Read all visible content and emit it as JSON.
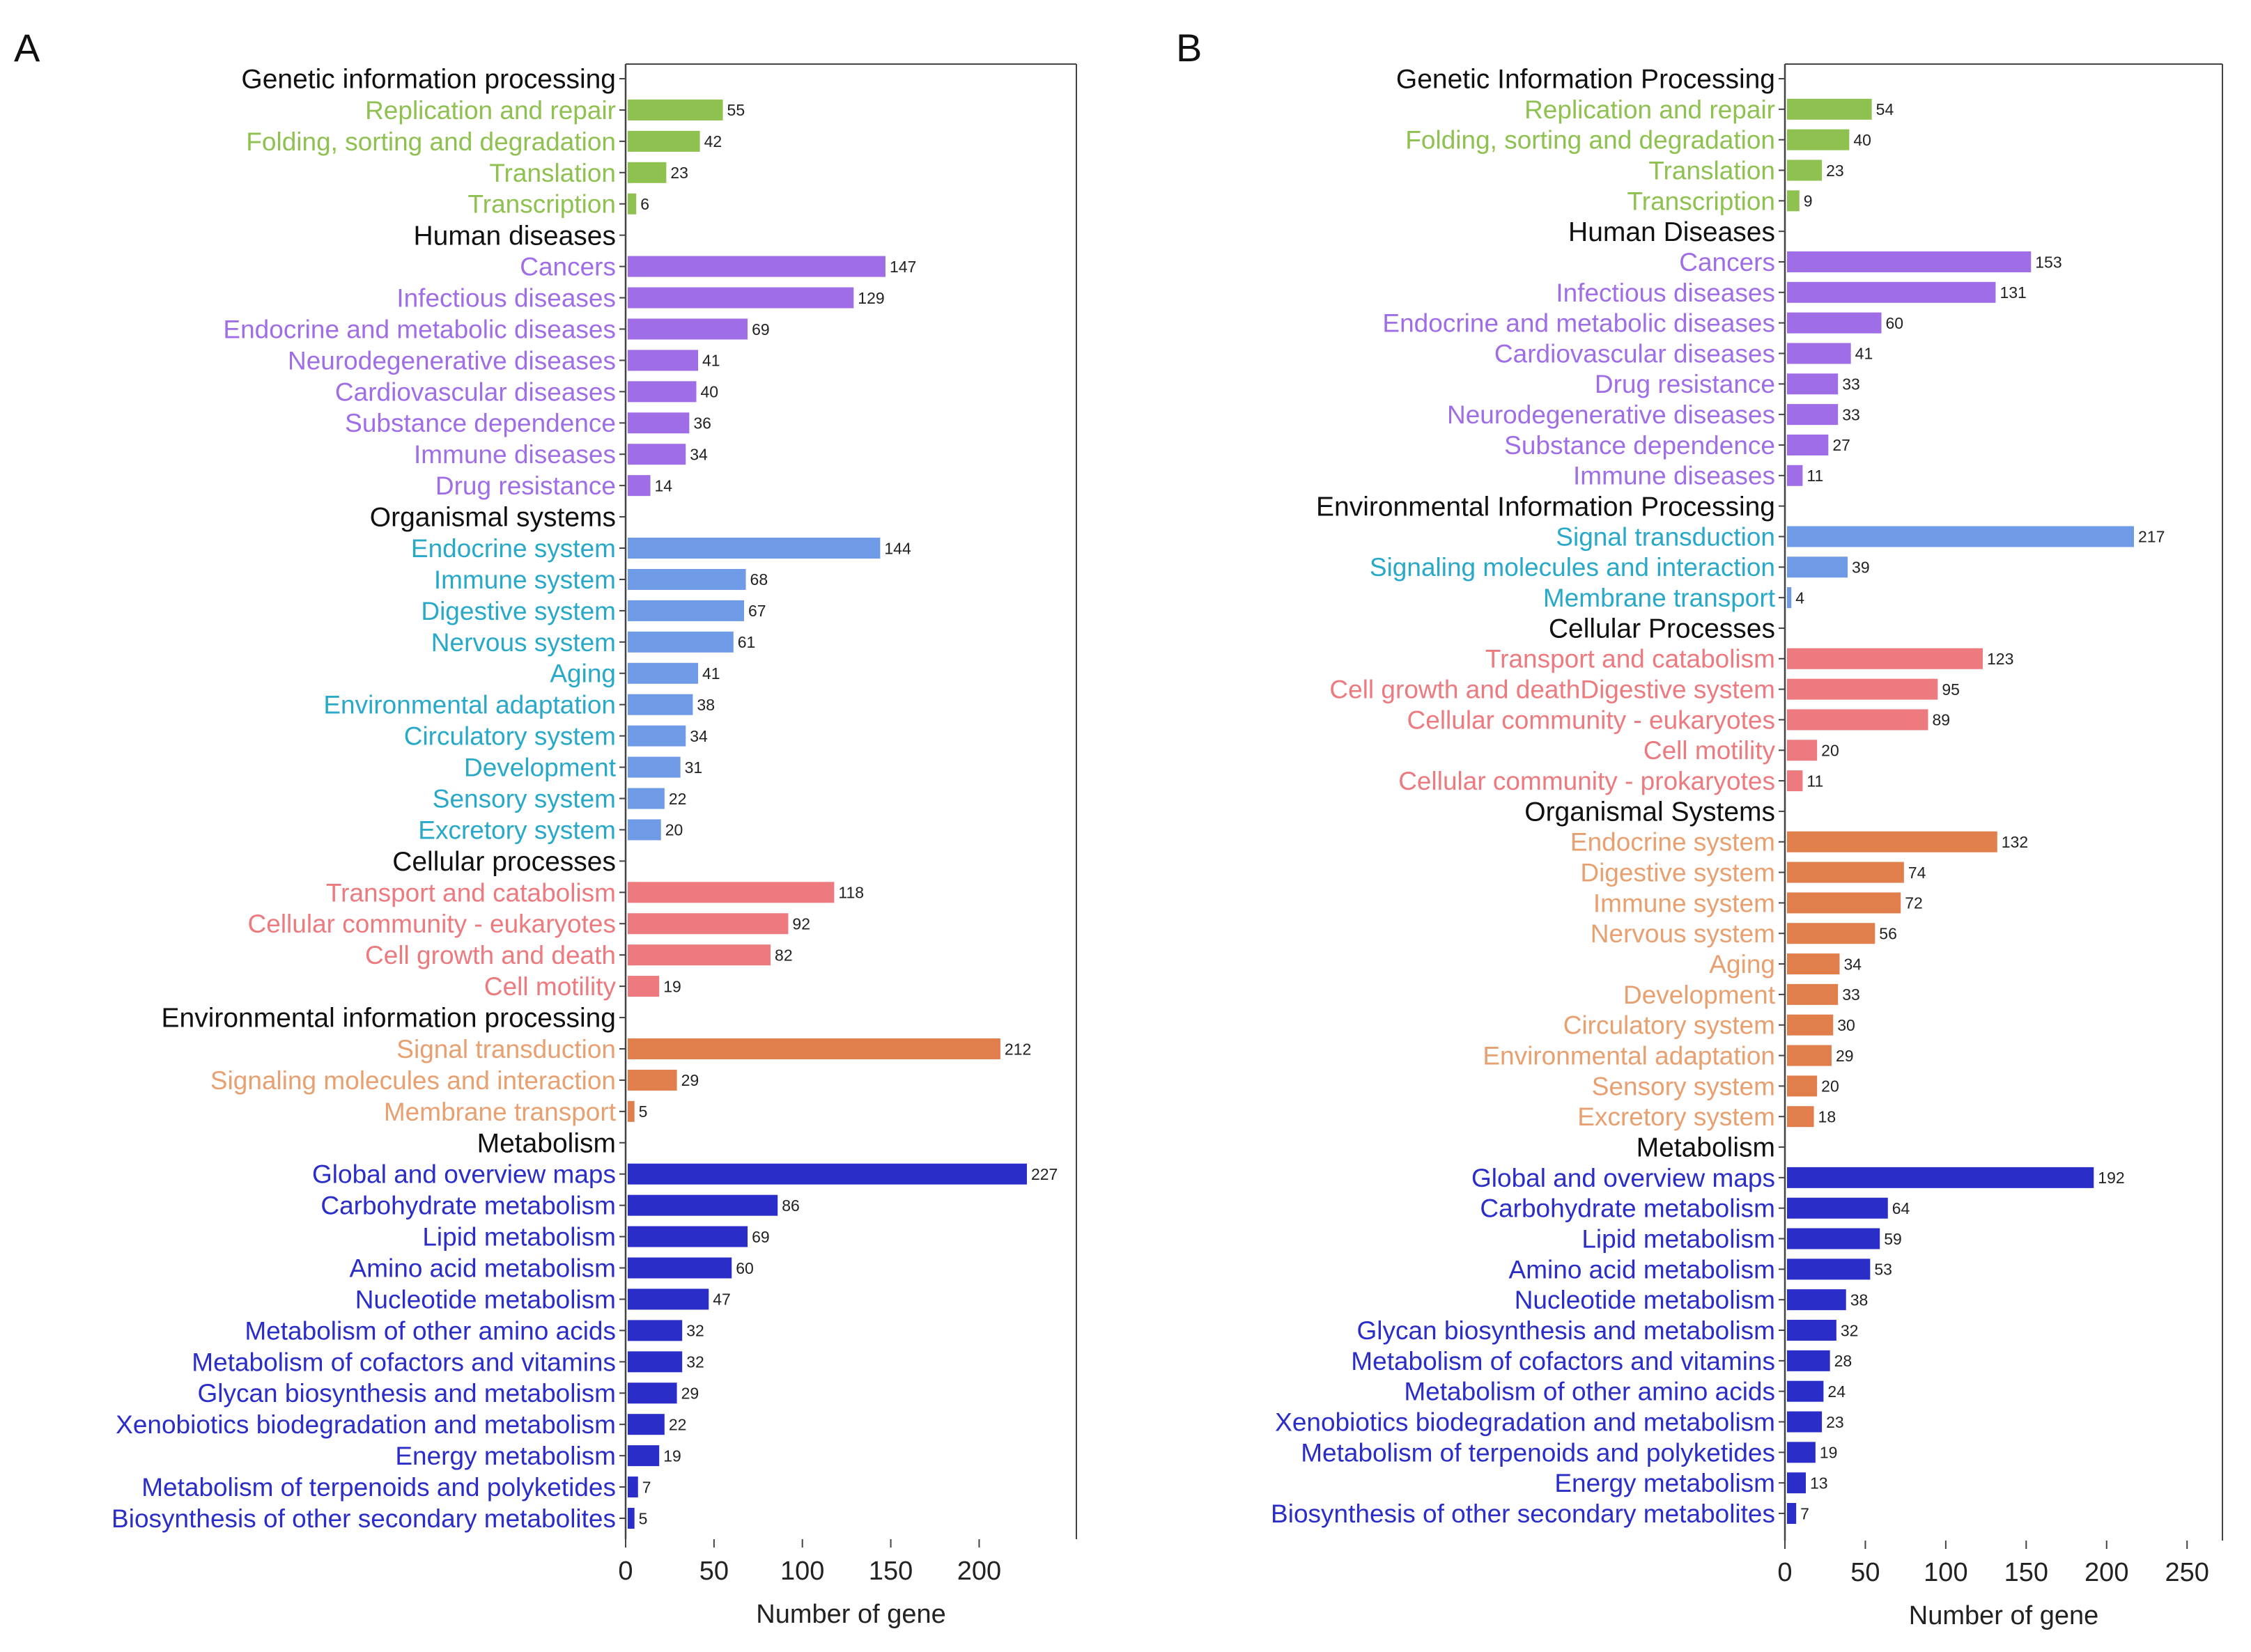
{
  "colors": {
    "genetic": "#8ec150",
    "human": "#9f6ee6",
    "organismal_A": "#29a9c9",
    "organismal_A_bar": "#6f9ae6",
    "cellular": "#ec7a7f",
    "environmental_A": "#e8a070",
    "environmental_A_bar": "#e07f4c",
    "metabolism": "#2b2dc9",
    "environmental_B": "#29a9c9",
    "environmental_B_bar": "#6f9ae6",
    "organismal_B": "#e8a070",
    "organismal_B_bar": "#e07f4c",
    "header": "#111111",
    "axis": "#444444"
  },
  "chart_data": [
    {
      "panel": "A",
      "type": "bar",
      "orientation": "horizontal",
      "xlabel": "Number of gene",
      "xlim": [
        0,
        255
      ],
      "xticks": [
        0,
        50,
        100,
        150,
        200
      ],
      "groups": [
        {
          "name": "Genetic information processing",
          "color_key": "genetic",
          "bar_key": "genetic",
          "items": [
            [
              "Replication and repair",
              55
            ],
            [
              "Folding, sorting and degradation",
              42
            ],
            [
              "Translation",
              23
            ],
            [
              "Transcription",
              6
            ]
          ]
        },
        {
          "name": "Human diseases",
          "color_key": "human",
          "bar_key": "human",
          "items": [
            [
              "Cancers",
              147
            ],
            [
              "Infectious diseases",
              129
            ],
            [
              "Endocrine and metabolic diseases",
              69
            ],
            [
              "Neurodegenerative diseases",
              41
            ],
            [
              "Cardiovascular diseases",
              40
            ],
            [
              "Substance dependence",
              36
            ],
            [
              "Immune diseases",
              34
            ],
            [
              "Drug resistance",
              14
            ]
          ]
        },
        {
          "name": "Organismal systems",
          "color_key": "organismal_A",
          "bar_key": "organismal_A_bar",
          "items": [
            [
              "Endocrine system",
              144
            ],
            [
              "Immune system",
              68
            ],
            [
              "Digestive system",
              67
            ],
            [
              "Nervous system",
              61
            ],
            [
              "Aging",
              41
            ],
            [
              "Environmental adaptation",
              38
            ],
            [
              "Circulatory system",
              34
            ],
            [
              "Development",
              31
            ],
            [
              "Sensory system",
              22
            ],
            [
              "Excretory system",
              20
            ]
          ]
        },
        {
          "name": "Cellular processes",
          "color_key": "cellular",
          "bar_key": "cellular",
          "items": [
            [
              "Transport and catabolism",
              118
            ],
            [
              "Cellular community - eukaryotes",
              92
            ],
            [
              "Cell growth and death",
              82
            ],
            [
              "Cell motility",
              19
            ]
          ]
        },
        {
          "name": "Environmental information processing",
          "color_key": "environmental_A",
          "bar_key": "environmental_A_bar",
          "items": [
            [
              "Signal transduction",
              212
            ],
            [
              "Signaling molecules and interaction",
              29
            ],
            [
              "Membrane transport",
              5
            ]
          ]
        },
        {
          "name": "Metabolism",
          "color_key": "metabolism",
          "bar_key": "metabolism",
          "items": [
            [
              "Global and overview maps",
              227
            ],
            [
              "Carbohydrate metabolism",
              86
            ],
            [
              "Lipid metabolism",
              69
            ],
            [
              "Amino acid metabolism",
              60
            ],
            [
              "Nucleotide metabolism",
              47
            ],
            [
              "Metabolism of other amino acids",
              32
            ],
            [
              "Metabolism of cofactors and vitamins",
              32
            ],
            [
              "Glycan biosynthesis and metabolism",
              29
            ],
            [
              "Xenobiotics biodegradation and metabolism",
              22
            ],
            [
              "Energy metabolism",
              19
            ],
            [
              "Metabolism of terpenoids and polyketides",
              7
            ],
            [
              "Biosynthesis of other secondary metabolites",
              5
            ]
          ]
        }
      ]
    },
    {
      "panel": "B",
      "type": "bar",
      "orientation": "horizontal",
      "xlabel": "Number of gene",
      "xlim": [
        0,
        272
      ],
      "xticks": [
        0,
        50,
        100,
        150,
        200,
        250
      ],
      "groups": [
        {
          "name": "Genetic Information Processing",
          "color_key": "genetic",
          "bar_key": "genetic",
          "items": [
            [
              "Replication and repair",
              54
            ],
            [
              "Folding, sorting and degradation",
              40
            ],
            [
              "Translation",
              23
            ],
            [
              "Transcription",
              9
            ]
          ]
        },
        {
          "name": "Human Diseases",
          "color_key": "human",
          "bar_key": "human",
          "items": [
            [
              "Cancers",
              153
            ],
            [
              "Infectious diseases",
              131
            ],
            [
              "Endocrine and metabolic diseases",
              60
            ],
            [
              "Cardiovascular diseases",
              41
            ],
            [
              "Drug resistance",
              33
            ],
            [
              "Neurodegenerative diseases",
              33
            ],
            [
              "Substance dependence",
              27
            ],
            [
              "Immune diseases",
              11
            ]
          ]
        },
        {
          "name": "Environmental Information Processing",
          "color_key": "environmental_B",
          "bar_key": "environmental_B_bar",
          "items": [
            [
              "Signal transduction",
              217
            ],
            [
              "Signaling molecules and interaction",
              39
            ],
            [
              "Membrane transport",
              4
            ]
          ]
        },
        {
          "name": "Cellular Processes",
          "color_key": "cellular",
          "bar_key": "cellular",
          "items": [
            [
              "Transport and catabolism",
              123
            ],
            [
              "Cell growth and deathDigestive system",
              95
            ],
            [
              "Cellular community - eukaryotes",
              89
            ],
            [
              "Cell motility",
              20
            ],
            [
              "Cellular community - prokaryotes",
              11
            ]
          ]
        },
        {
          "name": "Organismal Systems",
          "color_key": "organismal_B",
          "bar_key": "organismal_B_bar",
          "items": [
            [
              "Endocrine system",
              132
            ],
            [
              "Digestive system",
              74
            ],
            [
              "Immune system",
              72
            ],
            [
              "Nervous system",
              56
            ],
            [
              "Aging",
              34
            ],
            [
              "Development",
              33
            ],
            [
              "Circulatory system",
              30
            ],
            [
              "Environmental adaptation",
              29
            ],
            [
              "Sensory system",
              20
            ],
            [
              "Excretory system",
              18
            ]
          ]
        },
        {
          "name": "Metabolism",
          "color_key": "metabolism",
          "bar_key": "metabolism",
          "items": [
            [
              "Global and overview maps",
              192
            ],
            [
              "Carbohydrate metabolism",
              64
            ],
            [
              "Lipid metabolism",
              59
            ],
            [
              "Amino acid metabolism",
              53
            ],
            [
              "Nucleotide metabolism",
              38
            ],
            [
              "Glycan biosynthesis and metabolism",
              32
            ],
            [
              "Metabolism of cofactors and vitamins",
              28
            ],
            [
              "Metabolism of other amino acids",
              24
            ],
            [
              "Xenobiotics biodegradation and metabolism",
              23
            ],
            [
              "Metabolism of terpenoids and polyketides",
              19
            ],
            [
              "Energy metabolism",
              13
            ],
            [
              "Biosynthesis of other secondary metabolites",
              7
            ]
          ]
        }
      ]
    }
  ]
}
